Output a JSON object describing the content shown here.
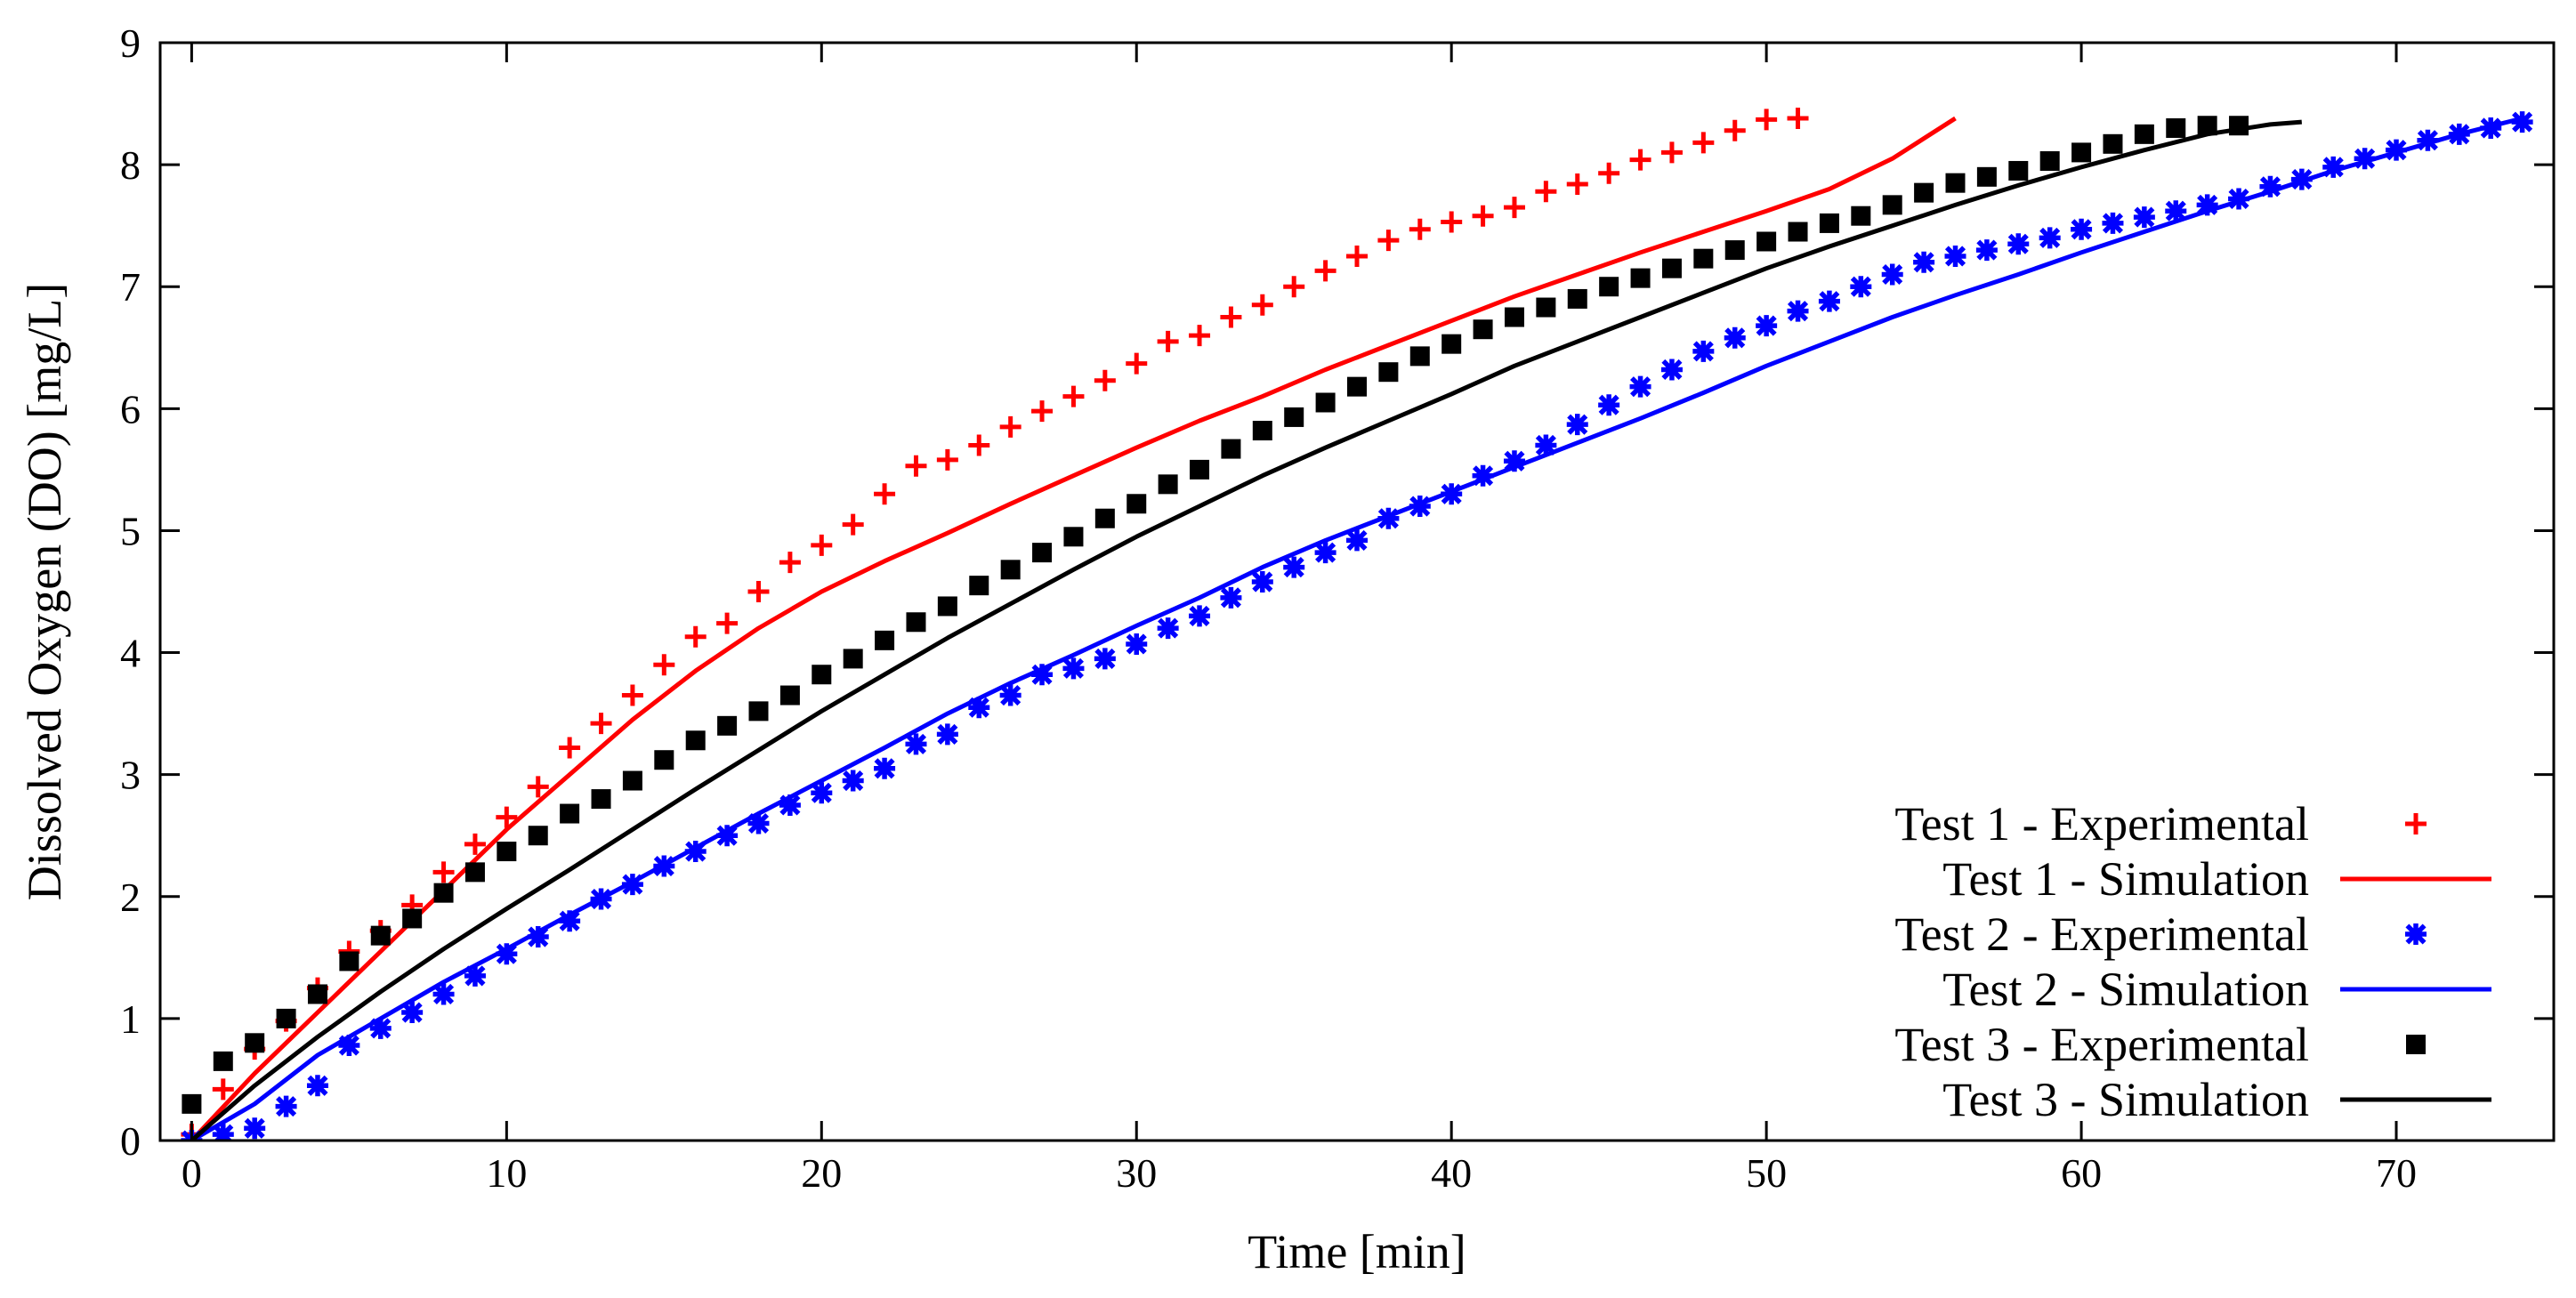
{
  "chart_data": {
    "type": "scatter",
    "xlabel": "Time [min]",
    "ylabel": "Dissolved Oxygen (DO) [mg/L]",
    "xlim": [
      -1,
      75
    ],
    "ylim": [
      0,
      9
    ],
    "xticks": [
      0,
      10,
      20,
      30,
      40,
      50,
      60,
      70
    ],
    "yticks": [
      0,
      1,
      2,
      3,
      4,
      5,
      6,
      7,
      8,
      9
    ],
    "grid": false,
    "legend_position": "bottom-right",
    "series": [
      {
        "name": "Test 1 - Experimental",
        "kind": "points",
        "marker": "plus",
        "color": "#ff0000",
        "x": [
          0,
          1,
          2,
          3,
          4,
          5,
          6,
          7,
          8,
          9,
          10,
          11,
          12,
          13,
          14,
          15,
          16,
          17,
          18,
          19,
          20,
          21,
          22,
          23,
          24,
          25,
          26,
          27,
          28,
          29,
          30,
          31,
          32,
          33,
          34,
          35,
          36,
          37,
          38,
          39,
          40,
          41,
          42,
          43,
          44,
          45,
          46,
          47,
          48,
          49,
          50,
          51
        ],
        "y": [
          0.05,
          0.42,
          0.75,
          0.98,
          1.25,
          1.55,
          1.72,
          1.93,
          2.2,
          2.43,
          2.65,
          2.9,
          3.22,
          3.42,
          3.65,
          3.9,
          4.13,
          4.24,
          4.5,
          4.74,
          4.88,
          5.05,
          5.3,
          5.53,
          5.58,
          5.7,
          5.85,
          5.98,
          6.1,
          6.23,
          6.37,
          6.55,
          6.6,
          6.75,
          6.85,
          7.0,
          7.13,
          7.25,
          7.38,
          7.47,
          7.53,
          7.58,
          7.65,
          7.78,
          7.84,
          7.93,
          8.04,
          8.1,
          8.18,
          8.28,
          8.37,
          8.38
        ]
      },
      {
        "name": "Test 1 - Simulation",
        "kind": "line",
        "color": "#ff0000",
        "x": [
          0,
          2,
          4,
          6,
          8,
          10,
          12,
          14,
          16,
          18,
          20,
          22,
          24,
          26,
          28,
          30,
          32,
          34,
          36,
          38,
          40,
          42,
          44,
          46,
          48,
          50,
          52,
          54,
          56
        ],
        "y": [
          0.0,
          0.55,
          1.05,
          1.55,
          2.05,
          2.55,
          3.0,
          3.45,
          3.85,
          4.2,
          4.5,
          4.75,
          4.98,
          5.22,
          5.45,
          5.68,
          5.9,
          6.1,
          6.32,
          6.52,
          6.72,
          6.92,
          7.1,
          7.28,
          7.45,
          7.62,
          7.8,
          8.05,
          8.38
        ]
      },
      {
        "name": "Test 2 - Experimental",
        "kind": "points",
        "marker": "star",
        "color": "#0000ff",
        "x": [
          0,
          1,
          2,
          3,
          4,
          5,
          6,
          7,
          8,
          9,
          10,
          11,
          12,
          13,
          14,
          15,
          16,
          17,
          18,
          19,
          20,
          21,
          22,
          23,
          24,
          25,
          26,
          27,
          28,
          29,
          30,
          31,
          32,
          33,
          34,
          35,
          36,
          37,
          38,
          39,
          40,
          41,
          42,
          43,
          44,
          45,
          46,
          47,
          48,
          49,
          50,
          51,
          52,
          53,
          54,
          55,
          56,
          57,
          58,
          59,
          60,
          61,
          62,
          63,
          64,
          65,
          66,
          67,
          68,
          69,
          70,
          71,
          72,
          73,
          74
        ],
        "y": [
          0.0,
          0.05,
          0.1,
          0.28,
          0.45,
          0.78,
          0.92,
          1.05,
          1.2,
          1.35,
          1.53,
          1.67,
          1.8,
          1.98,
          2.1,
          2.25,
          2.37,
          2.5,
          2.6,
          2.75,
          2.85,
          2.95,
          3.05,
          3.25,
          3.33,
          3.55,
          3.65,
          3.82,
          3.87,
          3.95,
          4.07,
          4.2,
          4.3,
          4.45,
          4.58,
          4.7,
          4.82,
          4.92,
          5.1,
          5.2,
          5.3,
          5.45,
          5.57,
          5.7,
          5.87,
          6.03,
          6.18,
          6.32,
          6.47,
          6.58,
          6.68,
          6.8,
          6.88,
          7.0,
          7.1,
          7.2,
          7.25,
          7.3,
          7.35,
          7.4,
          7.47,
          7.52,
          7.57,
          7.62,
          7.67,
          7.72,
          7.82,
          7.88,
          7.98,
          8.05,
          8.12,
          8.2,
          8.25,
          8.3,
          8.35
        ]
      },
      {
        "name": "Test 2 - Simulation",
        "kind": "line",
        "color": "#0000ff",
        "x": [
          0,
          2,
          4,
          6,
          8,
          10,
          12,
          14,
          16,
          18,
          20,
          22,
          24,
          26,
          28,
          30,
          32,
          34,
          36,
          38,
          40,
          42,
          44,
          46,
          48,
          50,
          52,
          54,
          56,
          58,
          60,
          62,
          64,
          66,
          68,
          70,
          72,
          74
        ],
        "y": [
          0.0,
          0.3,
          0.7,
          1.0,
          1.3,
          1.57,
          1.85,
          2.12,
          2.4,
          2.68,
          2.95,
          3.22,
          3.5,
          3.75,
          3.98,
          4.22,
          4.45,
          4.7,
          4.92,
          5.12,
          5.32,
          5.52,
          5.72,
          5.92,
          6.13,
          6.35,
          6.55,
          6.75,
          6.93,
          7.1,
          7.28,
          7.45,
          7.62,
          7.78,
          7.95,
          8.1,
          8.25,
          8.38
        ]
      },
      {
        "name": "Test 3 - Experimental",
        "kind": "points",
        "marker": "square",
        "color": "#000000",
        "x": [
          0,
          1,
          2,
          3,
          4,
          5,
          6,
          7,
          8,
          9,
          10,
          11,
          12,
          13,
          14,
          15,
          16,
          17,
          18,
          19,
          20,
          21,
          22,
          23,
          24,
          25,
          26,
          27,
          28,
          29,
          30,
          31,
          32,
          33,
          34,
          35,
          36,
          37,
          38,
          39,
          40,
          41,
          42,
          43,
          44,
          45,
          46,
          47,
          48,
          49,
          50,
          51,
          52,
          53,
          54,
          55,
          56,
          57,
          58,
          59,
          60,
          61,
          62,
          63,
          64,
          65
        ],
        "y": [
          0.3,
          0.65,
          0.8,
          1.0,
          1.2,
          1.47,
          1.68,
          1.82,
          2.03,
          2.2,
          2.37,
          2.5,
          2.68,
          2.8,
          2.95,
          3.12,
          3.28,
          3.4,
          3.52,
          3.65,
          3.82,
          3.95,
          4.1,
          4.25,
          4.38,
          4.55,
          4.68,
          4.82,
          4.95,
          5.1,
          5.22,
          5.38,
          5.5,
          5.67,
          5.82,
          5.93,
          6.05,
          6.18,
          6.3,
          6.43,
          6.53,
          6.65,
          6.75,
          6.83,
          6.9,
          7.0,
          7.07,
          7.15,
          7.23,
          7.3,
          7.37,
          7.45,
          7.52,
          7.58,
          7.67,
          7.77,
          7.85,
          7.9,
          7.95,
          8.03,
          8.1,
          8.17,
          8.25,
          8.3,
          8.32,
          8.32
        ]
      },
      {
        "name": "Test 3 - Simulation",
        "kind": "line",
        "color": "#000000",
        "x": [
          0,
          2,
          4,
          6,
          8,
          10,
          12,
          14,
          16,
          18,
          20,
          22,
          24,
          26,
          28,
          30,
          32,
          34,
          36,
          38,
          40,
          42,
          44,
          46,
          48,
          50,
          52,
          54,
          56,
          58,
          60,
          62,
          64,
          66,
          67
        ],
        "y": [
          0.0,
          0.45,
          0.85,
          1.22,
          1.57,
          1.9,
          2.22,
          2.55,
          2.88,
          3.2,
          3.52,
          3.82,
          4.12,
          4.4,
          4.68,
          4.95,
          5.2,
          5.45,
          5.68,
          5.9,
          6.12,
          6.35,
          6.55,
          6.75,
          6.95,
          7.15,
          7.33,
          7.5,
          7.67,
          7.83,
          7.98,
          8.12,
          8.25,
          8.33,
          8.35
        ]
      }
    ]
  }
}
